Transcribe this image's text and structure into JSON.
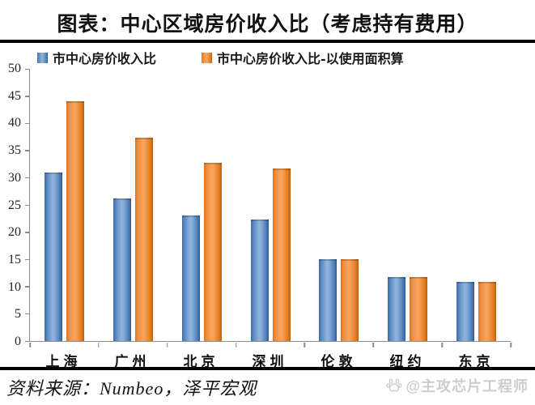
{
  "title": "图表：中心区域房价收入比（考虑持有费用）",
  "source_note": "资料来源：Numbeo，泽平宏观",
  "watermark": {
    "icon": "baidu-paw-icon",
    "text": "@主攻芯片工程师"
  },
  "colors": {
    "series_blue": "#4f81bd",
    "series_orange": "#ee8c3c",
    "axis": "#8c8c8c",
    "divider": "#000000",
    "watermark": "#cdcdcd"
  },
  "chart_data": {
    "type": "bar",
    "title": "图表：中心区域房价收入比（考虑持有费用）",
    "categories": [
      "上海",
      "广州",
      "北京",
      "深圳",
      "伦敦",
      "纽约",
      "东京"
    ],
    "series": [
      {
        "name": "市中心房价收入比",
        "color": "#4f81bd",
        "values": [
          31.0,
          26.2,
          23.0,
          22.3,
          15.0,
          11.8,
          10.9
        ]
      },
      {
        "name": "市中心房价收入比-以使用面积算",
        "color": "#ee8c3c",
        "values": [
          44.1,
          37.3,
          32.8,
          31.7,
          15.0,
          11.8,
          10.9
        ]
      }
    ],
    "xlabel": "",
    "ylabel": "",
    "ylim": [
      0,
      50
    ],
    "y_ticks": [
      0,
      5,
      10,
      15,
      20,
      25,
      30,
      35,
      40,
      45,
      50
    ],
    "grid": false,
    "legend_position": "top-left"
  }
}
